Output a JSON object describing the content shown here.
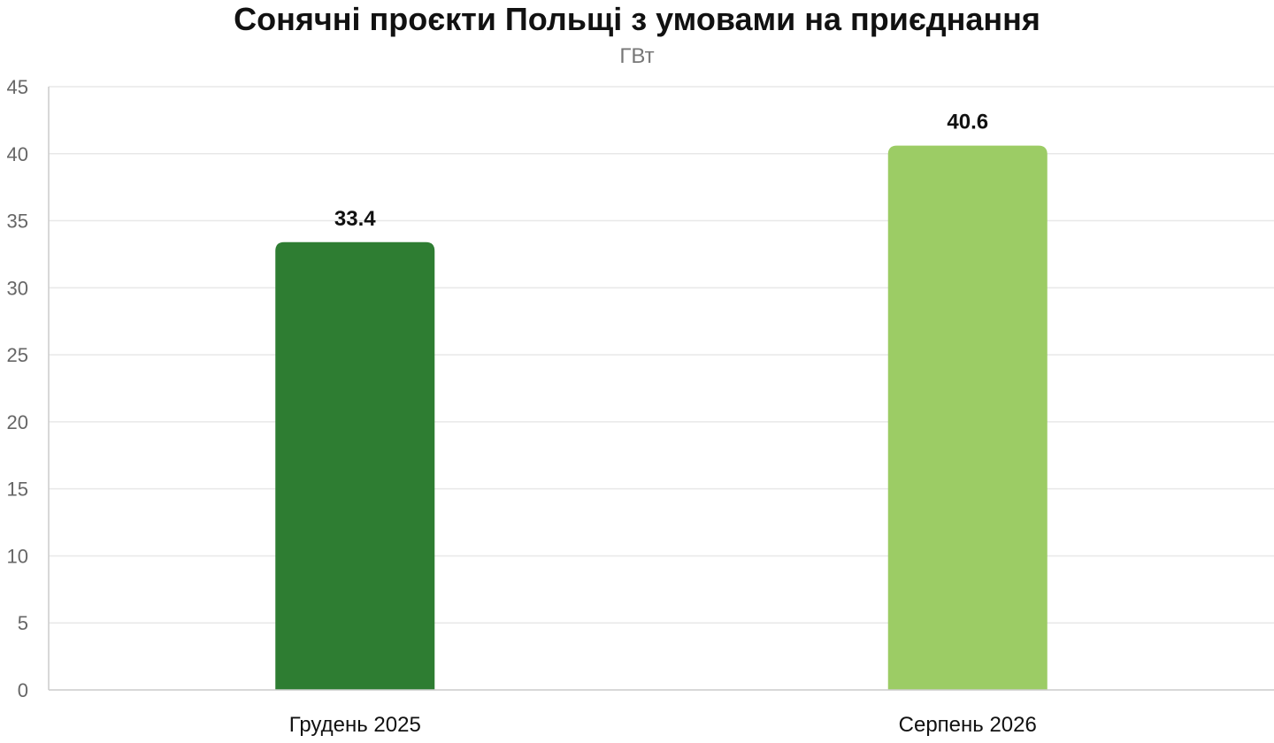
{
  "chart_data": {
    "type": "bar",
    "title": "Сонячні проєкти Польщі з умовами на приєднання",
    "subtitle": "ГВт",
    "xlabel": "",
    "ylabel": "",
    "categories": [
      "Грудень 2025",
      "Серпень 2026"
    ],
    "values": [
      33.4,
      40.6
    ],
    "data_labels": [
      "33.4",
      "40.6"
    ],
    "bar_colors": [
      "#2e7d32",
      "#9ccc65"
    ],
    "ylim": [
      0,
      45
    ],
    "yticks": [
      0,
      5,
      10,
      15,
      20,
      25,
      30,
      35,
      40,
      45
    ],
    "grid": true,
    "legend": "none"
  }
}
